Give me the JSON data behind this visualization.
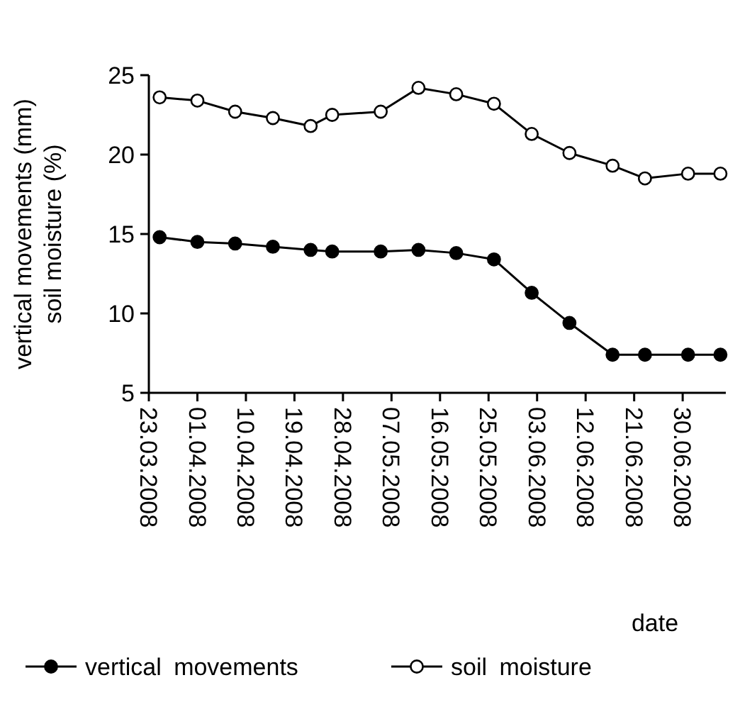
{
  "chart_data": {
    "type": "line",
    "xlabel": "date",
    "ylabel": "vertical movements (mm)\nsoil moisture (%)",
    "x": [
      "2008-03-25",
      "2008-04-01",
      "2008-04-08",
      "2008-04-15",
      "2008-04-22",
      "2008-04-26",
      "2008-05-05",
      "2008-05-12",
      "2008-05-19",
      "2008-05-26",
      "2008-06-02",
      "2008-06-09",
      "2008-06-17",
      "2008-06-23",
      "2008-07-01",
      "2008-07-07"
    ],
    "series": [
      {
        "name": "vertical movements",
        "color": "#000000",
        "values": [
          14.8,
          14.5,
          14.4,
          14.2,
          14.0,
          13.9,
          13.9,
          14.0,
          13.8,
          13.4,
          11.3,
          9.4,
          7.4,
          7.4,
          7.4,
          7.4
        ]
      },
      {
        "name": "soil moisture",
        "color": "#000000",
        "values": [
          23.6,
          23.4,
          22.7,
          22.3,
          21.8,
          22.5,
          22.7,
          24.2,
          23.8,
          23.2,
          21.3,
          20.1,
          19.3,
          18.5,
          18.8,
          18.8
        ]
      }
    ],
    "xlim": [
      "2008-03-23",
      "2008-07-08"
    ],
    "xticks": [
      {
        "value": "2008-03-23",
        "label": "23.03.2008"
      },
      {
        "value": "2008-04-01",
        "label": "01.04.2008"
      },
      {
        "value": "2008-04-10",
        "label": "10.04.2008"
      },
      {
        "value": "2008-04-19",
        "label": "19.04.2008"
      },
      {
        "value": "2008-04-28",
        "label": "28.04.2008"
      },
      {
        "value": "2008-05-07",
        "label": "07.05.2008"
      },
      {
        "value": "2008-05-16",
        "label": "16.05.2008"
      },
      {
        "value": "2008-05-25",
        "label": "25.05.2008"
      },
      {
        "value": "2008-06-03",
        "label": "03.06.2008"
      },
      {
        "value": "2008-06-12",
        "label": "12.06.2008"
      },
      {
        "value": "2008-06-21",
        "label": "21.06.2008"
      },
      {
        "value": "2008-06-30",
        "label": "30.06.2008"
      }
    ],
    "ylim": [
      5,
      25
    ],
    "yticks": [
      5,
      10,
      15,
      20,
      25
    ],
    "grid": false,
    "legend": "bottom",
    "marker": "circle",
    "line_style": "solid"
  }
}
